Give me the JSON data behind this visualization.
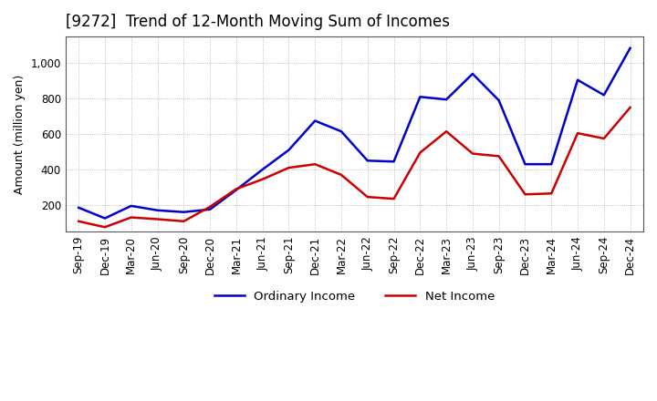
{
  "title": "[9272]  Trend of 12-Month Moving Sum of Incomes",
  "ylabel": "Amount (million yen)",
  "xlabels": [
    "Sep-19",
    "Dec-19",
    "Mar-20",
    "Jun-20",
    "Sep-20",
    "Dec-20",
    "Mar-21",
    "Jun-21",
    "Sep-21",
    "Dec-21",
    "Mar-22",
    "Jun-22",
    "Sep-22",
    "Dec-22",
    "Mar-23",
    "Jun-23",
    "Sep-23",
    "Dec-23",
    "Mar-24",
    "Jun-24",
    "Sep-24",
    "Dec-24"
  ],
  "ordinary_income": [
    185,
    125,
    195,
    170,
    160,
    175,
    285,
    400,
    510,
    675,
    615,
    450,
    445,
    810,
    795,
    940,
    790,
    430,
    430,
    905,
    820,
    1085
  ],
  "net_income": [
    108,
    75,
    130,
    120,
    108,
    190,
    290,
    345,
    410,
    430,
    370,
    245,
    235,
    495,
    615,
    490,
    475,
    260,
    265,
    605,
    575,
    750
  ],
  "ordinary_color": "#0000cc",
  "net_color": "#cc0000",
  "ylim": [
    50,
    1150
  ],
  "yticks": [
    200,
    400,
    600,
    800,
    1000
  ],
  "background_color": "#ffffff",
  "grid_color": "#aaaaaa",
  "title_fontsize": 12,
  "label_fontsize": 9,
  "tick_fontsize": 8.5
}
